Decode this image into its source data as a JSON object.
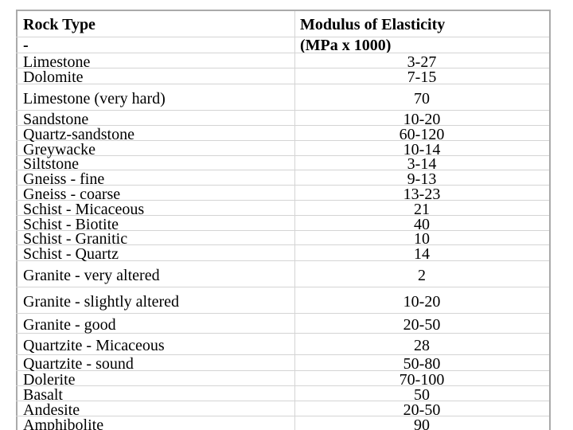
{
  "header": {
    "rock_type": "Rock Type",
    "rock_type_sub": "-",
    "modulus": "Modulus of Elasticity",
    "modulus_unit": "(MPa x 1000)"
  },
  "table": {
    "rows": [
      [
        "Limestone",
        "3-27"
      ],
      [
        "Dolomite",
        "7-15"
      ],
      [
        "Limestone (very hard)",
        "70"
      ],
      [
        "Sandstone",
        "10-20"
      ],
      [
        "Quartz-sandstone",
        "60-120"
      ],
      [
        "Greywacke",
        "10-14"
      ],
      [
        "Siltstone",
        "3-14"
      ],
      [
        "Gneiss - fine",
        "9-13"
      ],
      [
        "Gneiss - coarse",
        "13-23"
      ],
      [
        "Schist - Micaceous",
        "21"
      ],
      [
        "Schist - Biotite",
        "40"
      ],
      [
        "Schist - Granitic",
        "10"
      ],
      [
        "Schist - Quartz",
        "14"
      ],
      [
        "Granite - very altered",
        "2"
      ],
      [
        "Granite - slightly altered",
        "10-20"
      ],
      [
        "Granite - good",
        "20-50"
      ],
      [
        "Quartzite - Micaceous",
        "28"
      ],
      [
        "Quartzite - sound",
        "50-80"
      ],
      [
        "Dolerite",
        "70-100"
      ],
      [
        "Basalt",
        "50"
      ],
      [
        "Andesite",
        "20-50"
      ],
      [
        "Amphibolite",
        "90"
      ]
    ]
  }
}
